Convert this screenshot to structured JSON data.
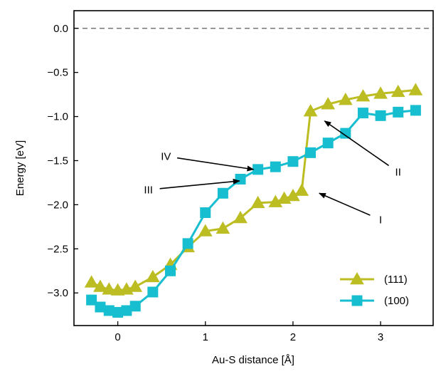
{
  "chart_data": {
    "type": "line",
    "title": "",
    "xlabel": "Au-S distance [Å]",
    "ylabel": "Energy [eV]",
    "xlim": [
      -0.5,
      3.6
    ],
    "ylim": [
      -3.37,
      0.2
    ],
    "x_ticks": [
      0,
      1,
      2,
      3
    ],
    "y_ticks": [
      0.0,
      -0.5,
      -1.0,
      -1.5,
      -2.0,
      -2.5,
      -3.0
    ],
    "x_tick_labels": [
      "0",
      "1",
      "2",
      "3"
    ],
    "y_tick_labels": [
      "0.0",
      "−0.5",
      "−1.0",
      "−1.5",
      "−2.0",
      "−2.5",
      "−3.0"
    ],
    "grid": false,
    "legend_position": "bottom-right",
    "reference_line": {
      "y": 0.0,
      "style": "dashed",
      "color": "#777777"
    },
    "series": [
      {
        "name": "(111)",
        "color": "#bcbd22",
        "marker": "triangle",
        "x": [
          -0.3,
          -0.2,
          -0.1,
          0.0,
          0.1,
          0.2,
          0.4,
          0.6,
          0.8,
          1.0,
          1.2,
          1.4,
          1.6,
          1.8,
          1.9,
          2.0,
          2.1,
          2.2,
          2.4,
          2.6,
          2.8,
          3.0,
          3.2,
          3.4
        ],
        "y": [
          -2.88,
          -2.93,
          -2.96,
          -2.97,
          -2.96,
          -2.93,
          -2.82,
          -2.68,
          -2.48,
          -2.3,
          -2.27,
          -2.15,
          -1.98,
          -1.97,
          -1.93,
          -1.9,
          -1.84,
          -0.94,
          -0.86,
          -0.81,
          -0.77,
          -0.74,
          -0.72,
          -0.7
        ]
      },
      {
        "name": "(100)",
        "color": "#17becf",
        "marker": "square",
        "x": [
          -0.3,
          -0.2,
          -0.1,
          0.0,
          0.1,
          0.2,
          0.4,
          0.6,
          0.8,
          1.0,
          1.2,
          1.4,
          1.6,
          1.8,
          2.0,
          2.2,
          2.4,
          2.6,
          2.8,
          3.0,
          3.2,
          3.4
        ],
        "y": [
          -3.08,
          -3.16,
          -3.2,
          -3.22,
          -3.2,
          -3.15,
          -2.99,
          -2.75,
          -2.44,
          -2.09,
          -1.87,
          -1.71,
          -1.6,
          -1.57,
          -1.51,
          -1.41,
          -1.3,
          -1.19,
          -0.96,
          -0.99,
          -0.95,
          -0.93
        ]
      }
    ],
    "annotations": [
      {
        "text": "IV",
        "text_xy": [
          0.55,
          -1.45
        ],
        "arrow_to": [
          1.55,
          -1.6
        ]
      },
      {
        "text": "III",
        "text_xy": [
          0.35,
          -1.83
        ],
        "arrow_to": [
          1.39,
          -1.73
        ]
      },
      {
        "text": "II",
        "text_xy": [
          3.2,
          -1.63
        ],
        "arrow_to": [
          2.36,
          -1.05
        ]
      },
      {
        "text": "I",
        "text_xy": [
          3.0,
          -2.17
        ],
        "arrow_to": [
          2.3,
          -1.87
        ]
      }
    ]
  }
}
